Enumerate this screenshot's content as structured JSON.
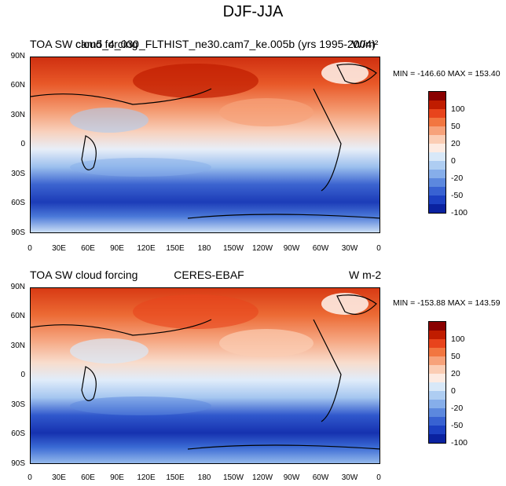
{
  "figure": {
    "title": "DJF-JJA"
  },
  "panels": [
    {
      "left_label": "TOA SW cloud forcing",
      "center_label": "cam5_4_030_FLTHIST_ne30.cam7_ke.005b (yrs 1995-2004)",
      "right_label": "W/m²",
      "minmax": "MIN = -146.60 MAX = 153.40"
    },
    {
      "left_label": "TOA SW cloud forcing",
      "center_label": "CERES-EBAF",
      "right_label": "W m-2",
      "minmax": "MIN = -153.88 MAX = 143.59"
    }
  ],
  "axes": {
    "lat_ticks": [
      "90N",
      "60N",
      "30N",
      "0",
      "30S",
      "60S",
      "90S"
    ],
    "lon_ticks": [
      "0",
      "30E",
      "60E",
      "90E",
      "120E",
      "150E",
      "180",
      "150W",
      "120W",
      "90W",
      "60W",
      "30W",
      "0"
    ]
  },
  "colorbar": {
    "labels": [
      "100",
      "50",
      "20",
      "0",
      "-20",
      "-50",
      "-100"
    ],
    "colors": [
      "#8a0000",
      "#c01c00",
      "#e8441c",
      "#f27640",
      "#f7a27a",
      "#fbcdb4",
      "#fdebe2",
      "#d8e8f8",
      "#aecdf2",
      "#86aeea",
      "#5c88de",
      "#3862d2",
      "#1c40c2",
      "#0a22a0"
    ]
  },
  "legend_colors": {
    "strong_positive": "#c83010",
    "positive": "#ee7040",
    "weak_positive": "#f8c4a8",
    "neutral": "#f2ece8",
    "weak_negative": "#c0d8f2",
    "negative": "#5c88de",
    "strong_negative": "#1c3cb8"
  }
}
